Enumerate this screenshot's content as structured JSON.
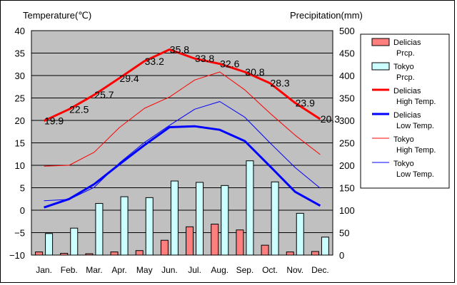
{
  "chart_data": {
    "type": "bar+line",
    "y_left_label": "Temperature(℃)",
    "y_right_label": "Precipitation(mm)",
    "y_left_range": [
      -10,
      40
    ],
    "y_right_range": [
      0,
      500
    ],
    "y_left_ticks": [
      "40",
      "35",
      "30",
      "25",
      "20",
      "15",
      "10",
      "5",
      "0",
      "−5",
      "−10"
    ],
    "y_right_ticks": [
      "500",
      "450",
      "400",
      "350",
      "300",
      "250",
      "200",
      "150",
      "100",
      "50",
      "0"
    ],
    "categories": [
      "Jan.",
      "Feb.",
      "Mar.",
      "Apr.",
      "May",
      "Jun.",
      "Jul.",
      "Aug.",
      "Sep.",
      "Oct.",
      "Nov.",
      "Dec."
    ],
    "grid": true,
    "legend_position": "right",
    "bar_series": [
      {
        "name": "Delicias\nPrcp.",
        "color": "#ff7f7f",
        "values": [
          7,
          4,
          3,
          7,
          10,
          33,
          63,
          69,
          56,
          22,
          7,
          8
        ]
      },
      {
        "name": "Tokyo\nPrcp.",
        "color": "#ccffff",
        "values": [
          48,
          60,
          115,
          130,
          128,
          165,
          162,
          155,
          210,
          163,
          93,
          40
        ]
      }
    ],
    "line_series": [
      {
        "name": "Delicias\nHigh Temp.",
        "color": "#ff0000",
        "width": 3,
        "values": [
          19.9,
          22.5,
          25.7,
          29.4,
          33.2,
          35.8,
          33.8,
          32.6,
          30.8,
          28.3,
          23.9,
          20.3
        ],
        "labels": [
          "19.9",
          "22.5",
          "25.7",
          "29.4",
          "33.2",
          "35.8",
          "33.8",
          "32.6",
          "30.8",
          "28.3",
          "23.9",
          "20.3"
        ]
      },
      {
        "name": "Delicias\nLow Temp.",
        "color": "#0000ff",
        "width": 3,
        "values": [
          0.6,
          2.5,
          5.8,
          10.2,
          14.5,
          18.5,
          18.7,
          17.9,
          15.4,
          9.8,
          4.1,
          1.0
        ]
      },
      {
        "name": "Tokyo\nHigh Temp.",
        "color": "#ff0000",
        "width": 1,
        "values": [
          9.8,
          10.0,
          12.9,
          18.4,
          22.7,
          25.2,
          29.0,
          30.8,
          26.8,
          21.6,
          16.7,
          12.4
        ]
      },
      {
        "name": "Tokyo\nLow Temp.",
        "color": "#0000ff",
        "width": 1,
        "values": [
          2.1,
          2.4,
          5.1,
          10.5,
          15.1,
          18.9,
          22.5,
          24.2,
          20.7,
          15.0,
          9.5,
          4.9
        ]
      }
    ]
  }
}
